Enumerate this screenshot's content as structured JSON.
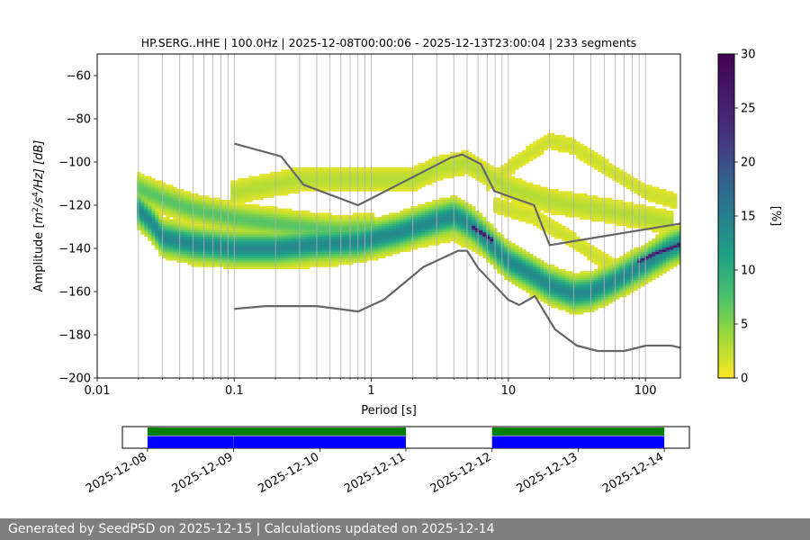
{
  "chart_data": [
    {
      "type": "heatmap",
      "title": "HP.SERG..HHE | 100.0Hz | 2025-12-08T00:00:06 - 2025-12-13T23:00:04 | 233 segments",
      "xlabel": "Period [s]",
      "ylabel": "Amplitude [m²/s⁴/Hz] [dB]",
      "ylabel_parts": {
        "pre": "Amplitude [",
        "m": "m",
        "m_sup": "2",
        "s": "/s",
        "s_sup": "4",
        "post": "/Hz] [dB]"
      },
      "x_scale": "log",
      "xlim": [
        0.01,
        180
      ],
      "ylim": [
        -200,
        -50
      ],
      "x_ticks": [
        {
          "value": 0.01,
          "label": "0.01"
        },
        {
          "value": 0.1,
          "label": "0.1"
        },
        {
          "value": 1,
          "label": "1"
        },
        {
          "value": 10,
          "label": "10"
        },
        {
          "value": 100,
          "label": "100"
        }
      ],
      "y_ticks": [
        {
          "value": -60,
          "label": "−60"
        },
        {
          "value": -80,
          "label": "−80"
        },
        {
          "value": -100,
          "label": "−100"
        },
        {
          "value": -120,
          "label": "−120"
        },
        {
          "value": -140,
          "label": "−140"
        },
        {
          "value": -160,
          "label": "−160"
        },
        {
          "value": -180,
          "label": "−180"
        },
        {
          "value": -200,
          "label": "−200"
        }
      ],
      "grid": "vertical",
      "colormap": "viridis_r",
      "colorbar": {
        "label": "[%]",
        "min": 0,
        "max": 30,
        "ticks": [
          {
            "value": 0,
            "label": "0"
          },
          {
            "value": 5,
            "label": "5"
          },
          {
            "value": 10,
            "label": "10"
          },
          {
            "value": 15,
            "label": "15"
          },
          {
            "value": 20,
            "label": "20"
          },
          {
            "value": 25,
            "label": "25"
          },
          {
            "value": 30,
            "label": "30"
          }
        ]
      },
      "density_ridges": [
        {
          "name": "main",
          "points": [
            [
              0.02,
              -122
            ],
            [
              0.025,
              -128
            ],
            [
              0.03,
              -135
            ],
            [
              0.05,
              -138
            ],
            [
              0.1,
              -140
            ],
            [
              0.2,
              -140
            ],
            [
              0.4,
              -138
            ],
            [
              0.8,
              -137
            ],
            [
              1.5,
              -133
            ],
            [
              3,
              -127
            ],
            [
              4,
              -125
            ],
            [
              5,
              -128
            ],
            [
              6,
              -132
            ],
            [
              8,
              -140
            ],
            [
              10,
              -146
            ],
            [
              15,
              -152
            ],
            [
              20,
              -157
            ],
            [
              30,
              -161
            ],
            [
              40,
              -160
            ],
            [
              60,
              -155
            ],
            [
              100,
              -147
            ],
            [
              150,
              -140
            ],
            [
              180,
              -138
            ]
          ],
          "width": 6,
          "peak": 14
        },
        {
          "name": "dark-core",
          "points": [
            [
              5.5,
              -130
            ],
            [
              6.5,
              -133
            ],
            [
              7.5,
              -136
            ]
          ],
          "width": 1.5,
          "peak": 28
        },
        {
          "name": "dark-tail",
          "points": [
            [
              90,
              -146
            ],
            [
              120,
              -142
            ],
            [
              150,
              -140
            ],
            [
              180,
              -138
            ]
          ],
          "width": 1.2,
          "peak": 28
        },
        {
          "name": "upper-short",
          "points": [
            [
              0.02,
              -112
            ],
            [
              0.03,
              -117
            ],
            [
              0.05,
              -122
            ],
            [
              0.1,
              -126
            ],
            [
              0.3,
              -130
            ],
            [
              0.6,
              -132
            ],
            [
              1,
              -131
            ]
          ],
          "width": 5,
          "peak": 7
        },
        {
          "name": "upper-long",
          "points": [
            [
              0.1,
              -114
            ],
            [
              0.3,
              -108
            ],
            [
              1,
              -108
            ],
            [
              2,
              -108
            ],
            [
              3,
              -103
            ],
            [
              5,
              -100
            ],
            [
              10,
              -112
            ],
            [
              20,
              -118
            ],
            [
              60,
              -123
            ],
            [
              150,
              -128
            ]
          ],
          "width": 5,
          "peak": 3
        },
        {
          "name": "arc-high",
          "points": [
            [
              7,
              -110
            ],
            [
              10,
              -103
            ],
            [
              15,
              -95
            ],
            [
              20,
              -90
            ],
            [
              30,
              -93
            ],
            [
              50,
              -102
            ],
            [
              100,
              -114
            ],
            [
              160,
              -118
            ]
          ],
          "width": 4,
          "peak": 2
        },
        {
          "name": "arc-low",
          "points": [
            [
              8,
              -120
            ],
            [
              15,
              -125
            ],
            [
              25,
              -133
            ],
            [
              40,
              -142
            ],
            [
              60,
              -149
            ],
            [
              90,
              -151
            ]
          ],
          "width": 4,
          "peak": 2
        },
        {
          "name": "low-band",
          "points": [
            [
              0.05,
              -144
            ],
            [
              0.2,
              -145
            ],
            [
              0.5,
              -144
            ],
            [
              1,
              -141
            ],
            [
              2,
              -136
            ],
            [
              4,
              -132
            ],
            [
              8,
              -143
            ],
            [
              15,
              -158
            ],
            [
              25,
              -163
            ]
          ],
          "width": 4,
          "peak": 3
        }
      ],
      "reference_curves": [
        {
          "name": "NHNM",
          "points": [
            [
              0.1,
              -91.5
            ],
            [
              0.22,
              -97.4
            ],
            [
              0.32,
              -110.5
            ],
            [
              0.8,
              -120
            ],
            [
              3.8,
              -98
            ],
            [
              4.6,
              -96.5
            ],
            [
              6.3,
              -101
            ],
            [
              7.9,
              -113.5
            ],
            [
              15.4,
              -120
            ],
            [
              20,
              -138.5
            ],
            [
              180,
              -128.5
            ]
          ]
        },
        {
          "name": "NLNM",
          "points": [
            [
              0.1,
              -168
            ],
            [
              0.17,
              -166.7
            ],
            [
              0.4,
              -166.7
            ],
            [
              0.8,
              -169.2
            ],
            [
              1.24,
              -163.7
            ],
            [
              2.4,
              -148.6
            ],
            [
              4.3,
              -141.1
            ],
            [
              5,
              -141.1
            ],
            [
              6,
              -149
            ],
            [
              10,
              -163.8
            ],
            [
              12,
              -166.2
            ],
            [
              15.6,
              -162.1
            ],
            [
              21.9,
              -177.5
            ],
            [
              31.6,
              -185
            ],
            [
              45,
              -187.5
            ],
            [
              70,
              -187.5
            ],
            [
              101,
              -185
            ],
            [
              154,
              -185
            ],
            [
              180,
              -186
            ]
          ]
        }
      ]
    },
    {
      "type": "timeline",
      "x_type": "date",
      "xlim": [
        "2025-12-07T17:00",
        "2025-12-14T07:00"
      ],
      "x_ticks": [
        {
          "value": "2025-12-08",
          "label": "2025-12-08"
        },
        {
          "value": "2025-12-09",
          "label": "2025-12-09"
        },
        {
          "value": "2025-12-10",
          "label": "2025-12-10"
        },
        {
          "value": "2025-12-11",
          "label": "2025-12-11"
        },
        {
          "value": "2025-12-12",
          "label": "2025-12-12"
        },
        {
          "value": "2025-12-13",
          "label": "2025-12-13"
        },
        {
          "value": "2025-12-14",
          "label": "2025-12-14"
        }
      ],
      "series": [
        {
          "color": "#008000",
          "segments": [
            [
              "2025-12-08T00:00",
              "2025-12-11T00:00"
            ],
            [
              "2025-12-12T00:00",
              "2025-12-14T00:00"
            ]
          ]
        },
        {
          "color": "#0000ff",
          "segments": [
            [
              "2025-12-08T00:00",
              "2025-12-08T23:59"
            ],
            [
              "2025-12-09T00:02",
              "2025-12-11T00:00"
            ],
            [
              "2025-12-12T00:00",
              "2025-12-14T00:00"
            ]
          ]
        }
      ]
    }
  ],
  "footer": {
    "text": "Generated by SeedPSD on 2025-12-15 | Calculations updated on 2025-12-14"
  }
}
